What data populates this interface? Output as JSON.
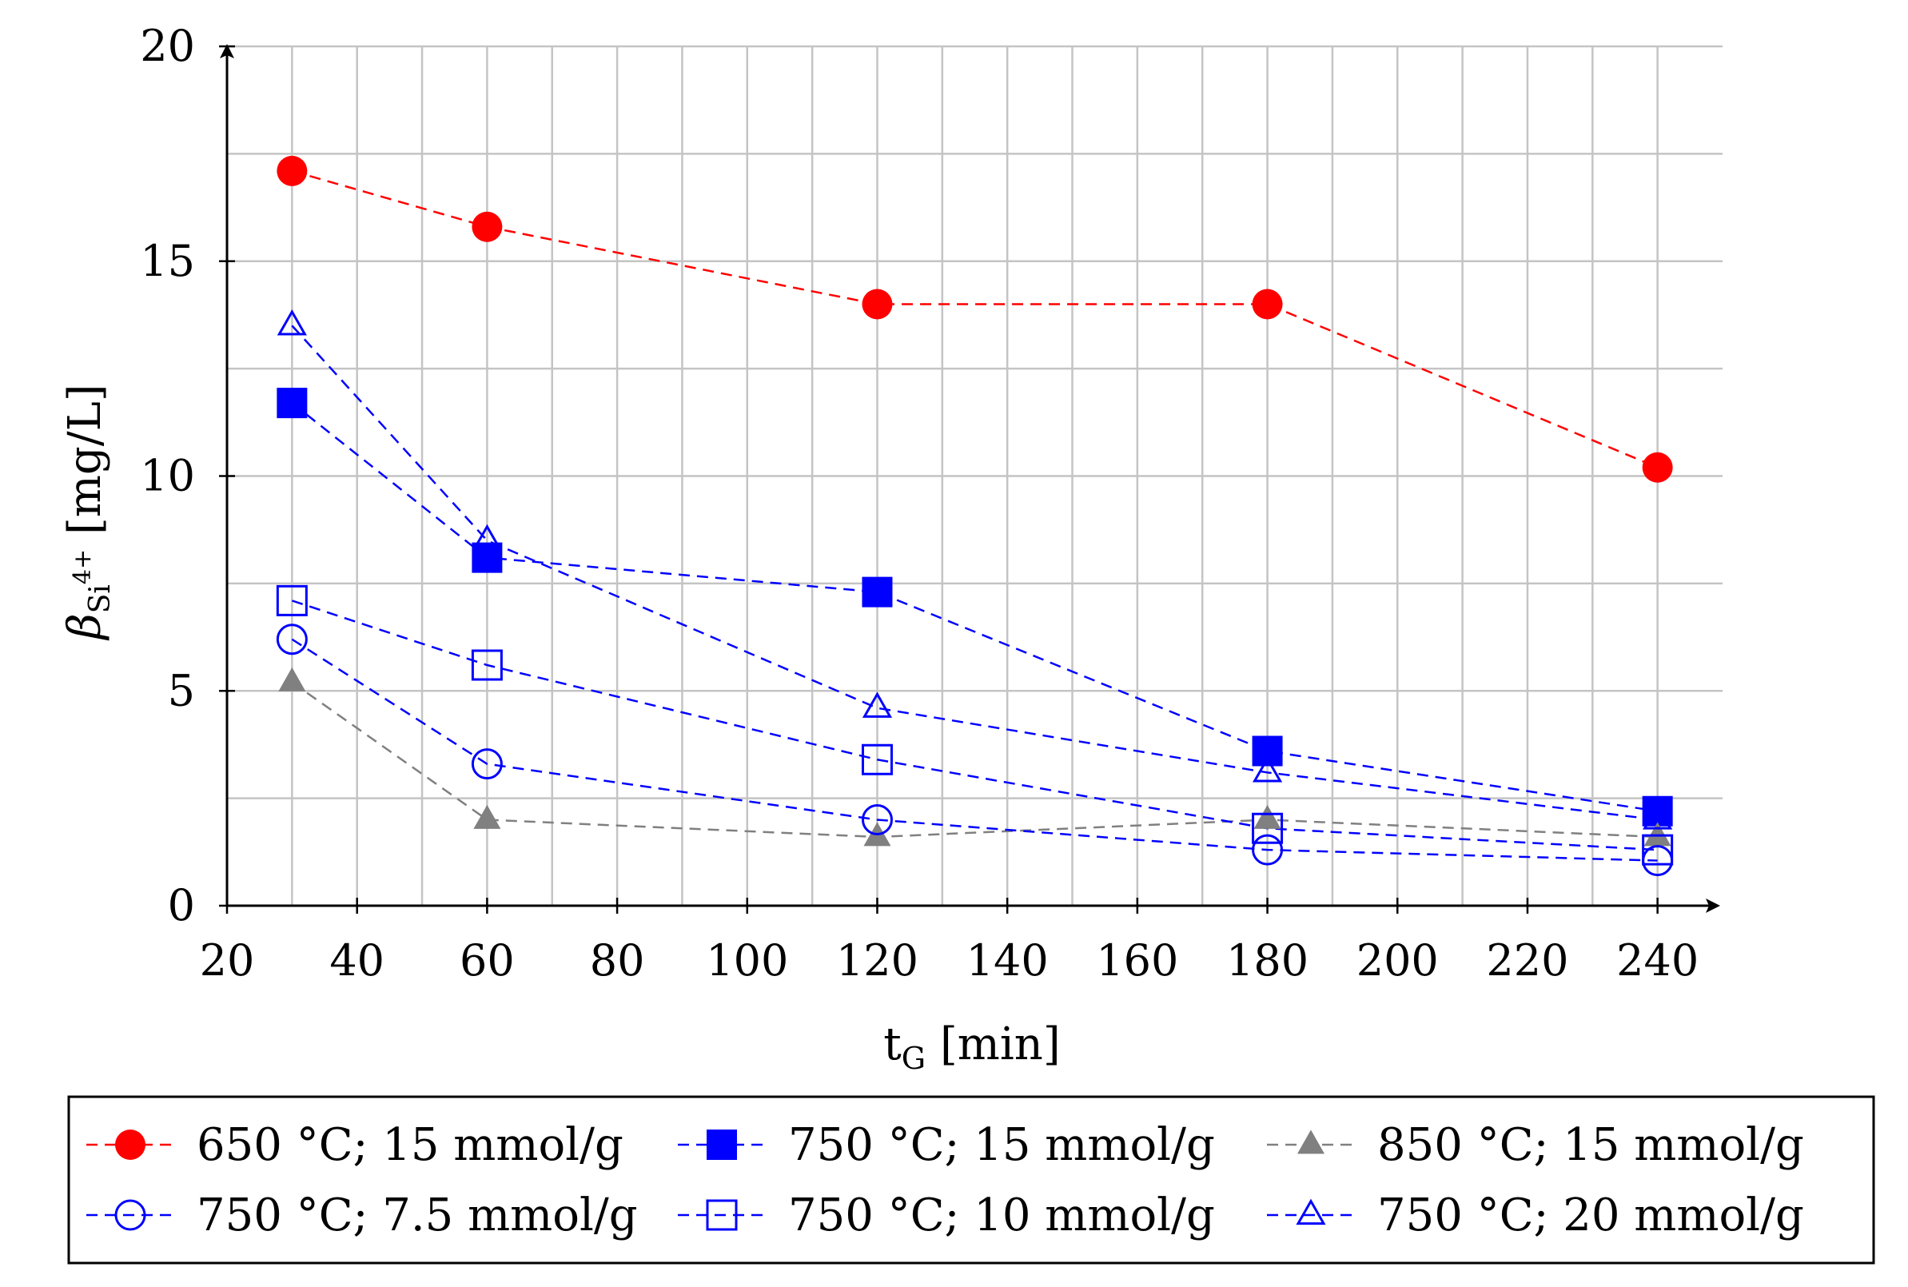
{
  "chart_data": {
    "type": "line",
    "xlabel": "t",
    "xlabel_sub": "G",
    "xlabel_unit": " [min]",
    "ylabel": "β",
    "ylabel_sub": "Si",
    "ylabel_sup": "4+",
    "ylabel_unit": " [mg/L]",
    "xlim": [
      20,
      250
    ],
    "ylim": [
      0,
      20
    ],
    "xticks": [
      20,
      40,
      60,
      80,
      100,
      120,
      140,
      160,
      180,
      200,
      220,
      240
    ],
    "yticks": [
      0,
      5,
      10,
      15,
      20
    ],
    "grid": true,
    "legend_position": "bottom",
    "series": [
      {
        "name": "650 °C; 15 mmol/g",
        "color": "#ff0000",
        "marker": "circle-filled",
        "x": [
          30,
          60,
          120,
          180,
          240
        ],
        "y": [
          17.1,
          15.8,
          14.0,
          14.0,
          10.2
        ]
      },
      {
        "name": "750 °C; 15 mmol/g",
        "color": "#0000ff",
        "marker": "square-filled",
        "x": [
          30,
          60,
          120,
          180,
          240
        ],
        "y": [
          11.7,
          8.1,
          7.3,
          3.6,
          2.2
        ]
      },
      {
        "name": "850 °C; 15 mmol/g",
        "color": "#808080",
        "marker": "triangle-filled",
        "x": [
          30,
          60,
          120,
          180,
          240
        ],
        "y": [
          5.2,
          2.0,
          1.6,
          2.0,
          1.6
        ]
      },
      {
        "name": "750 °C; 7.5 mmol/g",
        "color": "#0000ff",
        "marker": "circle-open",
        "x": [
          30,
          60,
          120,
          180,
          240
        ],
        "y": [
          6.2,
          3.3,
          2.0,
          1.3,
          1.05
        ]
      },
      {
        "name": "750 °C; 10 mmol/g",
        "color": "#0000ff",
        "marker": "square-open",
        "x": [
          30,
          60,
          120,
          180,
          240
        ],
        "y": [
          7.1,
          5.6,
          3.4,
          1.8,
          1.3
        ]
      },
      {
        "name": "750 °C; 20 mmol/g",
        "color": "#0000ff",
        "marker": "triangle-open",
        "x": [
          30,
          60,
          120,
          180,
          240
        ],
        "y": [
          13.5,
          8.5,
          4.6,
          3.1,
          2.0
        ]
      }
    ]
  }
}
